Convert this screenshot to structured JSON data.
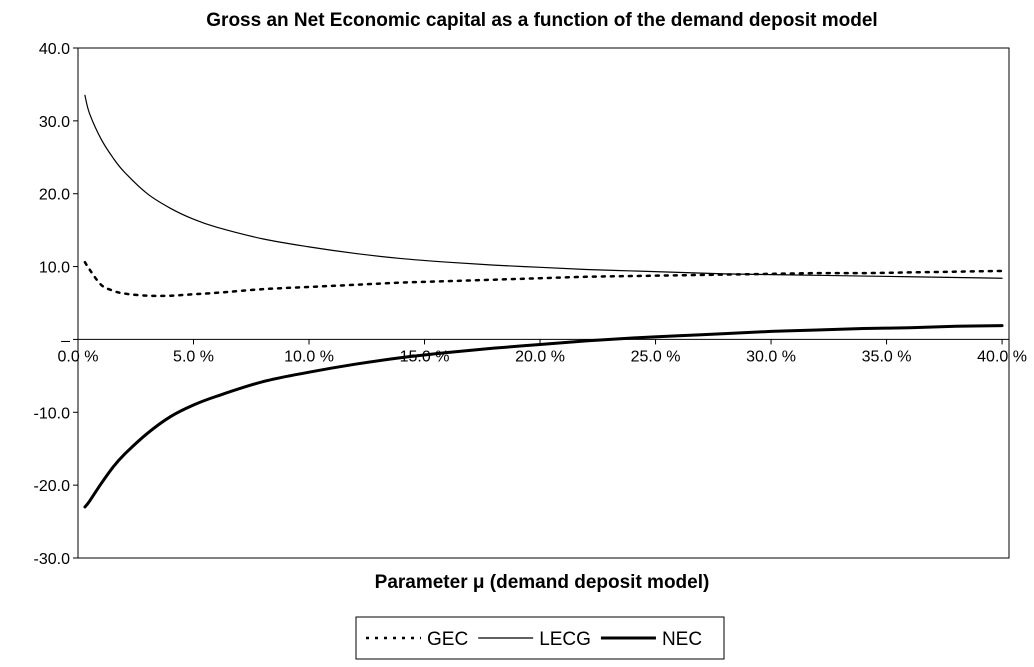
{
  "chart_data": {
    "type": "line",
    "title": "Gross an Net Economic capital as a function of the demand deposit model",
    "xlabel": "Parameter μ (demand deposit model)",
    "ylabel": "",
    "xlim": [
      0,
      40.3
    ],
    "ylim": [
      -30,
      40
    ],
    "x_ticks": [
      0,
      5,
      10,
      15,
      20,
      25,
      30,
      35,
      40
    ],
    "x_tick_labels": [
      "0.0 %",
      "5.0 %",
      "10.0 %",
      "15.0 %",
      "20.0 %",
      "25.0 %",
      "30.0 %",
      "35.0 %",
      "40.0 %"
    ],
    "y_ticks": [
      40,
      30,
      20,
      10,
      0,
      -10,
      -20,
      -30
    ],
    "y_tick_labels": [
      "40.0",
      "30.0",
      "20.0",
      "10.0",
      "–",
      "-10.0",
      "-20.0",
      "-30.0"
    ],
    "grid": false,
    "legend_position": "bottom",
    "x": [
      0.3,
      0.5,
      1,
      1.5,
      2,
      3,
      4,
      5,
      6,
      8,
      10,
      12,
      14,
      16,
      18,
      20,
      22,
      24,
      26,
      28,
      30,
      32,
      34,
      36,
      38,
      40
    ],
    "series": [
      {
        "name": "GEC",
        "style": "dotted",
        "values": [
          10.6,
          9.6,
          7.5,
          6.7,
          6.3,
          6.0,
          6.0,
          6.2,
          6.4,
          6.9,
          7.2,
          7.5,
          7.8,
          8.0,
          8.2,
          8.4,
          8.6,
          8.7,
          8.8,
          8.9,
          9.0,
          9.1,
          9.1,
          9.2,
          9.3,
          9.4
        ]
      },
      {
        "name": "LECG",
        "style": "thin",
        "values": [
          33.5,
          31.0,
          27.5,
          25.0,
          23.0,
          20.0,
          18.0,
          16.5,
          15.4,
          13.8,
          12.7,
          11.8,
          11.1,
          10.6,
          10.2,
          9.9,
          9.6,
          9.4,
          9.2,
          9.0,
          8.9,
          8.8,
          8.7,
          8.6,
          8.5,
          8.4
        ]
      },
      {
        "name": "NEC",
        "style": "thick",
        "values": [
          -23.0,
          -22.2,
          -19.8,
          -17.6,
          -15.8,
          -12.9,
          -10.6,
          -9.0,
          -7.8,
          -5.8,
          -4.5,
          -3.4,
          -2.5,
          -1.8,
          -1.2,
          -0.7,
          -0.2,
          0.2,
          0.5,
          0.8,
          1.1,
          1.3,
          1.5,
          1.6,
          1.8,
          1.9
        ]
      }
    ]
  }
}
